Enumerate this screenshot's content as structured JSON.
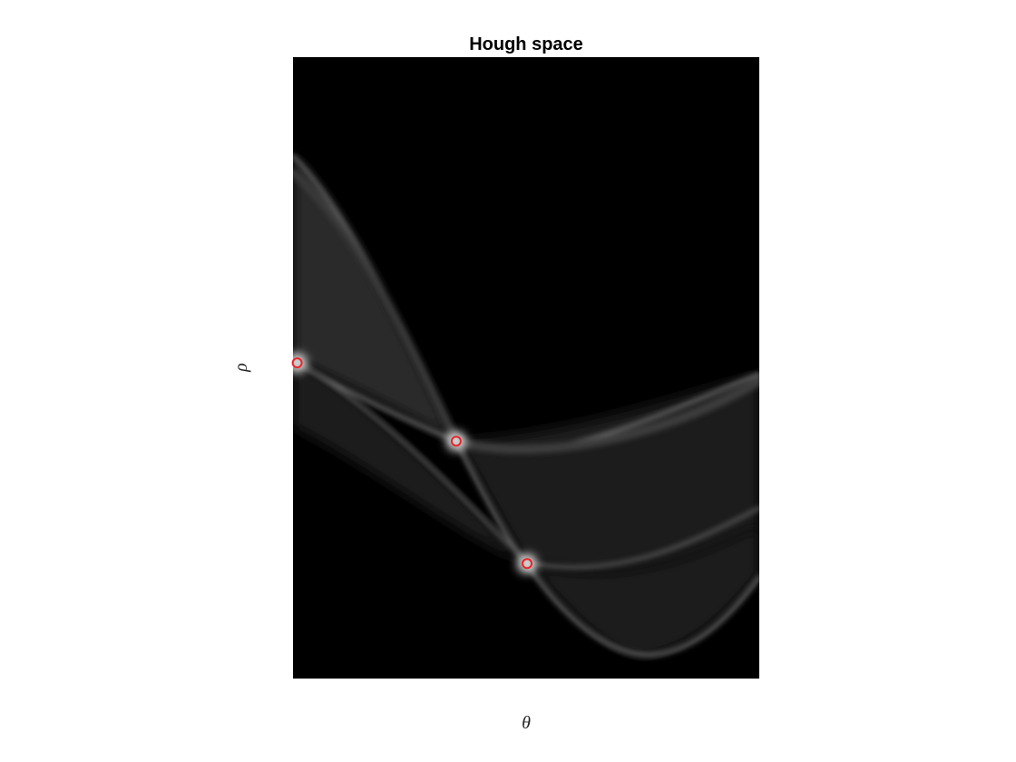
{
  "chart_data": {
    "type": "heatmap",
    "title": "Hough space",
    "xlabel": "θ",
    "ylabel": "ρ",
    "axes_visible": false,
    "colormap": "gray",
    "background_color": "#000000",
    "marker_color": "#e8262b",
    "x_range": [
      0,
      1
    ],
    "y_range": [
      0,
      1
    ],
    "peaks": [
      {
        "x": 0.009,
        "y": 0.508
      },
      {
        "x": 0.35,
        "y": 0.382
      },
      {
        "x": 0.502,
        "y": 0.185
      }
    ]
  }
}
